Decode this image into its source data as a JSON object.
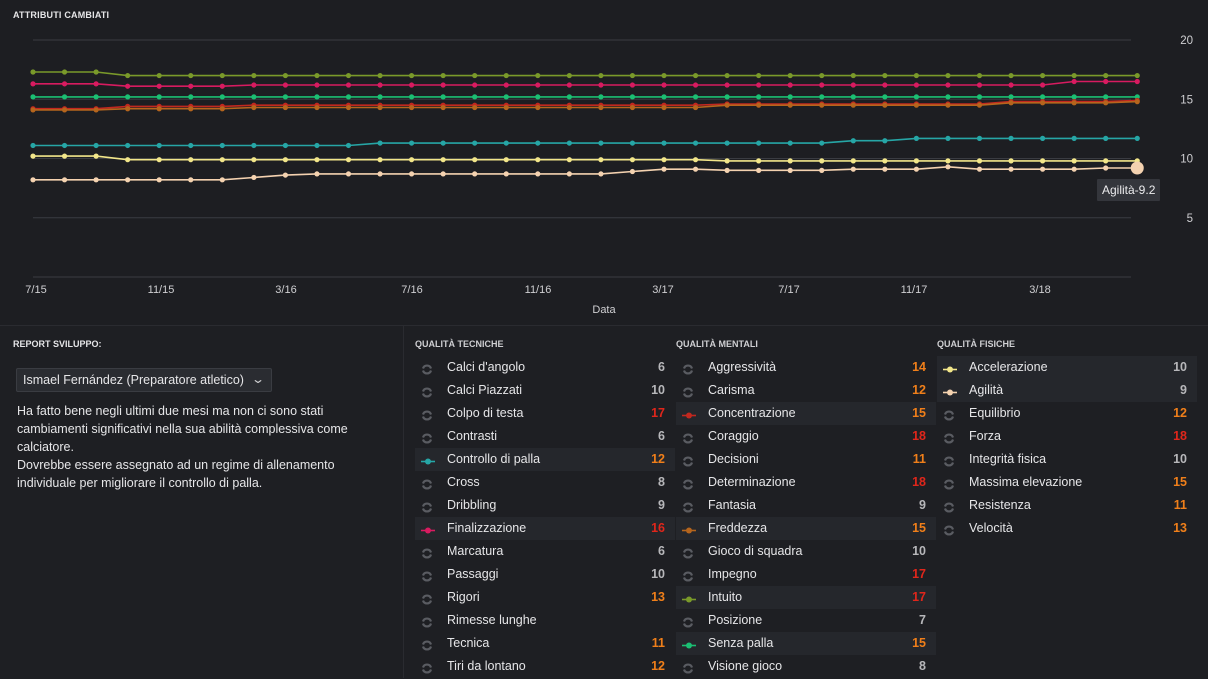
{
  "chart_panel": {
    "title": "ATTRIBUTI CAMBIATI"
  },
  "chart_data": {
    "type": "line",
    "title": "ATTRIBUTI CAMBIATI",
    "xlabel": "Data",
    "ylabel": "",
    "x_ticks": [
      "7/15",
      "11/15",
      "3/16",
      "7/16",
      "11/16",
      "3/17",
      "7/17",
      "11/17",
      "3/18"
    ],
    "y_ticks": [
      20,
      15,
      10,
      5
    ],
    "ylim": [
      0,
      20
    ],
    "grid": true,
    "n_points": 36,
    "series": [
      {
        "name": "Intuito",
        "color": "#7a9a2a",
        "values": [
          17.3,
          17.3,
          17.3,
          17,
          17,
          17,
          17,
          17,
          17,
          17,
          17,
          17,
          17,
          17,
          17,
          17,
          17,
          17,
          17,
          17,
          17,
          17,
          17,
          17,
          17,
          17,
          17,
          17,
          17,
          17,
          17,
          17,
          17,
          17,
          17,
          17
        ]
      },
      {
        "name": "Finalizzazione",
        "color": "#d81b60",
        "values": [
          16.3,
          16.3,
          16.3,
          16.1,
          16.1,
          16.1,
          16.1,
          16.2,
          16.2,
          16.2,
          16.2,
          16.2,
          16.2,
          16.2,
          16.2,
          16.2,
          16.2,
          16.2,
          16.2,
          16.2,
          16.2,
          16.2,
          16.2,
          16.2,
          16.2,
          16.2,
          16.2,
          16.2,
          16.2,
          16.2,
          16.2,
          16.2,
          16.2,
          16.5,
          16.5,
          16.5
        ]
      },
      {
        "name": "Senza palla",
        "color": "#1bbf73",
        "values": [
          15.2,
          15.2,
          15.2,
          15.2,
          15.2,
          15.2,
          15.2,
          15.2,
          15.2,
          15.2,
          15.2,
          15.2,
          15.2,
          15.2,
          15.2,
          15.2,
          15.2,
          15.2,
          15.2,
          15.2,
          15.2,
          15.2,
          15.2,
          15.2,
          15.2,
          15.2,
          15.2,
          15.2,
          15.2,
          15.2,
          15.2,
          15.2,
          15.2,
          15.2,
          15.2,
          15.2
        ]
      },
      {
        "name": "Concentrazione",
        "color": "#c2281f",
        "values": [
          14.2,
          14.2,
          14.2,
          14.4,
          14.4,
          14.4,
          14.4,
          14.5,
          14.5,
          14.5,
          14.5,
          14.5,
          14.5,
          14.5,
          14.5,
          14.5,
          14.5,
          14.5,
          14.5,
          14.5,
          14.5,
          14.5,
          14.6,
          14.6,
          14.6,
          14.6,
          14.6,
          14.6,
          14.6,
          14.6,
          14.6,
          14.8,
          14.8,
          14.8,
          14.8,
          14.9
        ]
      },
      {
        "name": "Freddezza",
        "color": "#b5651d",
        "values": [
          14.1,
          14.1,
          14.1,
          14.2,
          14.2,
          14.2,
          14.2,
          14.3,
          14.3,
          14.3,
          14.3,
          14.3,
          14.3,
          14.3,
          14.3,
          14.3,
          14.3,
          14.3,
          14.3,
          14.3,
          14.3,
          14.3,
          14.5,
          14.5,
          14.5,
          14.5,
          14.5,
          14.5,
          14.5,
          14.5,
          14.5,
          14.7,
          14.7,
          14.7,
          14.7,
          14.8
        ]
      },
      {
        "name": "Controllo di palla",
        "color": "#26a6a6",
        "values": [
          11.1,
          11.1,
          11.1,
          11.1,
          11.1,
          11.1,
          11.1,
          11.1,
          11.1,
          11.1,
          11.1,
          11.3,
          11.3,
          11.3,
          11.3,
          11.3,
          11.3,
          11.3,
          11.3,
          11.3,
          11.3,
          11.3,
          11.3,
          11.3,
          11.3,
          11.3,
          11.5,
          11.5,
          11.7,
          11.7,
          11.7,
          11.7,
          11.7,
          11.7,
          11.7,
          11.7
        ]
      },
      {
        "name": "Accelerazione",
        "color": "#f2e68a",
        "values": [
          10.2,
          10.2,
          10.2,
          9.9,
          9.9,
          9.9,
          9.9,
          9.9,
          9.9,
          9.9,
          9.9,
          9.9,
          9.9,
          9.9,
          9.9,
          9.9,
          9.9,
          9.9,
          9.9,
          9.9,
          9.9,
          9.9,
          9.8,
          9.8,
          9.8,
          9.8,
          9.8,
          9.8,
          9.8,
          9.8,
          9.8,
          9.8,
          9.8,
          9.8,
          9.8,
          9.8
        ]
      },
      {
        "name": "Agilità",
        "color": "#f4d2b0",
        "values": [
          8.2,
          8.2,
          8.2,
          8.2,
          8.2,
          8.2,
          8.2,
          8.4,
          8.6,
          8.7,
          8.7,
          8.7,
          8.7,
          8.7,
          8.7,
          8.7,
          8.7,
          8.7,
          8.7,
          8.9,
          9.1,
          9.1,
          9.0,
          9.0,
          9.0,
          9.0,
          9.1,
          9.1,
          9.1,
          9.3,
          9.1,
          9.1,
          9.1,
          9.1,
          9.2,
          9.2
        ]
      }
    ],
    "tooltip": "Agilità-9.2"
  },
  "report": {
    "title": "REPORT SVILUPPO:",
    "coach": "Ismael Fernández (Preparatore atletico)",
    "line1": "Ha fatto bene negli ultimi due mesi ma non ci sono stati cambiamenti significativi nella sua abilità complessiva come calciatore.",
    "line2": "Dovrebbe essere assegnato ad un regime di allenamento individuale per migliorare il controllo di palla."
  },
  "columns": [
    {
      "title": "QUALITÀ TECNICHE",
      "items": [
        {
          "label": "Calci d'angolo",
          "value": "6",
          "color": "#b7b7ba",
          "icon": null
        },
        {
          "label": "Calci Piazzati",
          "value": "10",
          "color": "#b7b7ba",
          "icon": null
        },
        {
          "label": "Colpo di testa",
          "value": "17",
          "color": "#e0261b",
          "icon": null
        },
        {
          "label": "Contrasti",
          "value": "6",
          "color": "#b7b7ba",
          "icon": null
        },
        {
          "label": "Controllo di palla",
          "value": "12",
          "color": "#f07f1a",
          "icon": "#26a6a6"
        },
        {
          "label": "Cross",
          "value": "8",
          "color": "#b7b7ba",
          "icon": null
        },
        {
          "label": "Dribbling",
          "value": "9",
          "color": "#b7b7ba",
          "icon": null
        },
        {
          "label": "Finalizzazione",
          "value": "16",
          "color": "#e0261b",
          "icon": "#d81b60"
        },
        {
          "label": "Marcatura",
          "value": "6",
          "color": "#b7b7ba",
          "icon": null
        },
        {
          "label": "Passaggi",
          "value": "10",
          "color": "#b7b7ba",
          "icon": null
        },
        {
          "label": "Rigori",
          "value": "13",
          "color": "#f07f1a",
          "icon": null
        },
        {
          "label": "Rimesse lunghe",
          "value": "",
          "color": "#b7b7ba",
          "icon": null
        },
        {
          "label": "Tecnica",
          "value": "11",
          "color": "#f07f1a",
          "icon": null
        },
        {
          "label": "Tiri da lontano",
          "value": "12",
          "color": "#f07f1a",
          "icon": null
        }
      ]
    },
    {
      "title": "QUALITÀ MENTALI",
      "items": [
        {
          "label": "Aggressività",
          "value": "14",
          "color": "#f07f1a",
          "icon": null
        },
        {
          "label": "Carisma",
          "value": "12",
          "color": "#f07f1a",
          "icon": null
        },
        {
          "label": "Concentrazione",
          "value": "15",
          "color": "#f07f1a",
          "icon": "#c2281f"
        },
        {
          "label": "Coraggio",
          "value": "18",
          "color": "#e0261b",
          "icon": null
        },
        {
          "label": "Decisioni",
          "value": "11",
          "color": "#f07f1a",
          "icon": null
        },
        {
          "label": "Determinazione",
          "value": "18",
          "color": "#e0261b",
          "icon": null
        },
        {
          "label": "Fantasia",
          "value": "9",
          "color": "#b7b7ba",
          "icon": null
        },
        {
          "label": "Freddezza",
          "value": "15",
          "color": "#f07f1a",
          "icon": "#b5651d"
        },
        {
          "label": "Gioco di squadra",
          "value": "10",
          "color": "#b7b7ba",
          "icon": null
        },
        {
          "label": "Impegno",
          "value": "17",
          "color": "#e0261b",
          "icon": null
        },
        {
          "label": "Intuito",
          "value": "17",
          "color": "#e0261b",
          "icon": "#7a9a2a"
        },
        {
          "label": "Posizione",
          "value": "7",
          "color": "#b7b7ba",
          "icon": null
        },
        {
          "label": "Senza palla",
          "value": "15",
          "color": "#f07f1a",
          "icon": "#1bbf73"
        },
        {
          "label": "Visione gioco",
          "value": "8",
          "color": "#b7b7ba",
          "icon": null
        }
      ]
    },
    {
      "title": "QUALITÀ FISICHE",
      "items": [
        {
          "label": "Accelerazione",
          "value": "10",
          "color": "#b7b7ba",
          "icon": "#f2e68a"
        },
        {
          "label": "Agilità",
          "value": "9",
          "color": "#b7b7ba",
          "icon": "#f4d2b0"
        },
        {
          "label": "Equilibrio",
          "value": "12",
          "color": "#f07f1a",
          "icon": null
        },
        {
          "label": "Forza",
          "value": "18",
          "color": "#e0261b",
          "icon": null
        },
        {
          "label": "Integrità fisica",
          "value": "10",
          "color": "#b7b7ba",
          "icon": null
        },
        {
          "label": "Massima elevazione",
          "value": "15",
          "color": "#f07f1a",
          "icon": null
        },
        {
          "label": "Resistenza",
          "value": "11",
          "color": "#f07f1a",
          "icon": null
        },
        {
          "label": "Velocità",
          "value": "13",
          "color": "#f07f1a",
          "icon": null
        }
      ]
    }
  ]
}
